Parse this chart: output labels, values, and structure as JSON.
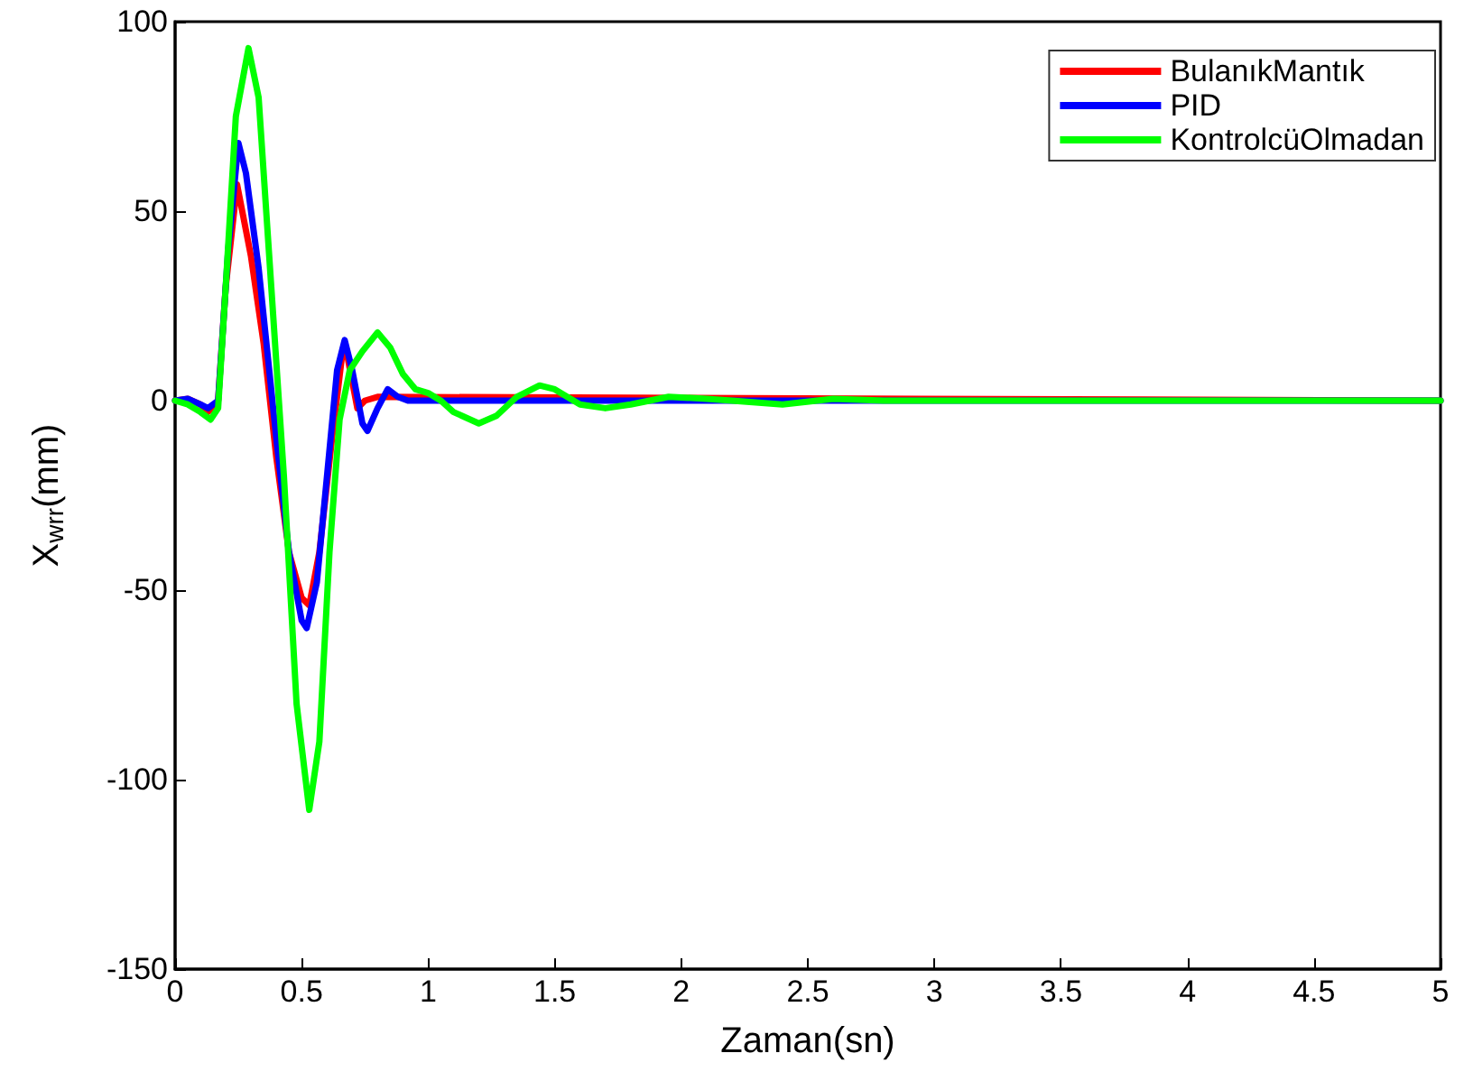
{
  "chart_data": {
    "type": "line",
    "xlabel": "Zaman(sn)",
    "ylabel": "X$_{wrr}$(mm)",
    "xlim": [
      0,
      5
    ],
    "xticks": [
      0,
      0.5,
      1,
      1.5,
      2,
      2.5,
      3,
      3.5,
      4,
      4.5,
      5
    ],
    "ylim": [
      -150,
      100
    ],
    "yticks": [
      -150,
      -100,
      -50,
      0,
      50,
      100
    ],
    "grid": false,
    "legend": "top right",
    "marker": "none",
    "line_style": "solid",
    "series": [
      {
        "name": "BulanıkMantık",
        "color": "#ff0000",
        "x": [
          0,
          0.05,
          0.1,
          0.13,
          0.17,
          0.2,
          0.245,
          0.3,
          0.35,
          0.4,
          0.45,
          0.5,
          0.53,
          0.57,
          0.62,
          0.66,
          0.68,
          0.72,
          0.75,
          0.8,
          5
        ],
        "values": [
          0,
          0.5,
          -1,
          -3,
          0,
          30,
          57,
          38,
          15,
          -15,
          -40,
          -52,
          -54,
          -40,
          -10,
          12,
          12,
          -2,
          0,
          1,
          0
        ]
      },
      {
        "name": "PID",
        "color": "#0000ff",
        "x": [
          0,
          0.05,
          0.1,
          0.13,
          0.17,
          0.21,
          0.25,
          0.28,
          0.33,
          0.4,
          0.45,
          0.5,
          0.52,
          0.56,
          0.6,
          0.64,
          0.67,
          0.7,
          0.74,
          0.76,
          0.8,
          0.84,
          0.88,
          0.92,
          5
        ],
        "values": [
          0,
          0.5,
          -1,
          -2,
          0,
          40,
          68,
          60,
          35,
          -10,
          -40,
          -58,
          -60,
          -48,
          -20,
          8,
          16,
          8,
          -6,
          -8,
          -2,
          3,
          1,
          0,
          0
        ]
      },
      {
        "name": "KontrolcüOlmadan",
        "color": "#00ff00",
        "x": [
          0,
          0.05,
          0.1,
          0.14,
          0.17,
          0.2,
          0.24,
          0.29,
          0.33,
          0.38,
          0.43,
          0.48,
          0.53,
          0.57,
          0.61,
          0.65,
          0.69,
          0.74,
          0.8,
          0.85,
          0.9,
          0.95,
          1,
          1.05,
          1.1,
          1.2,
          1.27,
          1.35,
          1.44,
          1.5,
          1.6,
          1.7,
          1.8,
          1.95,
          2.1,
          2.2,
          2.4,
          2.6,
          2.8,
          5
        ],
        "values": [
          0,
          -1,
          -3,
          -5,
          -2,
          30,
          75,
          93,
          80,
          30,
          -20,
          -80,
          -108,
          -90,
          -40,
          -5,
          8,
          13,
          18,
          14,
          7,
          3,
          2,
          0,
          -3,
          -6,
          -4,
          1,
          4,
          3,
          -1,
          -2,
          -1,
          1,
          0.5,
          0,
          -1,
          0.5,
          0,
          0
        ]
      }
    ]
  }
}
